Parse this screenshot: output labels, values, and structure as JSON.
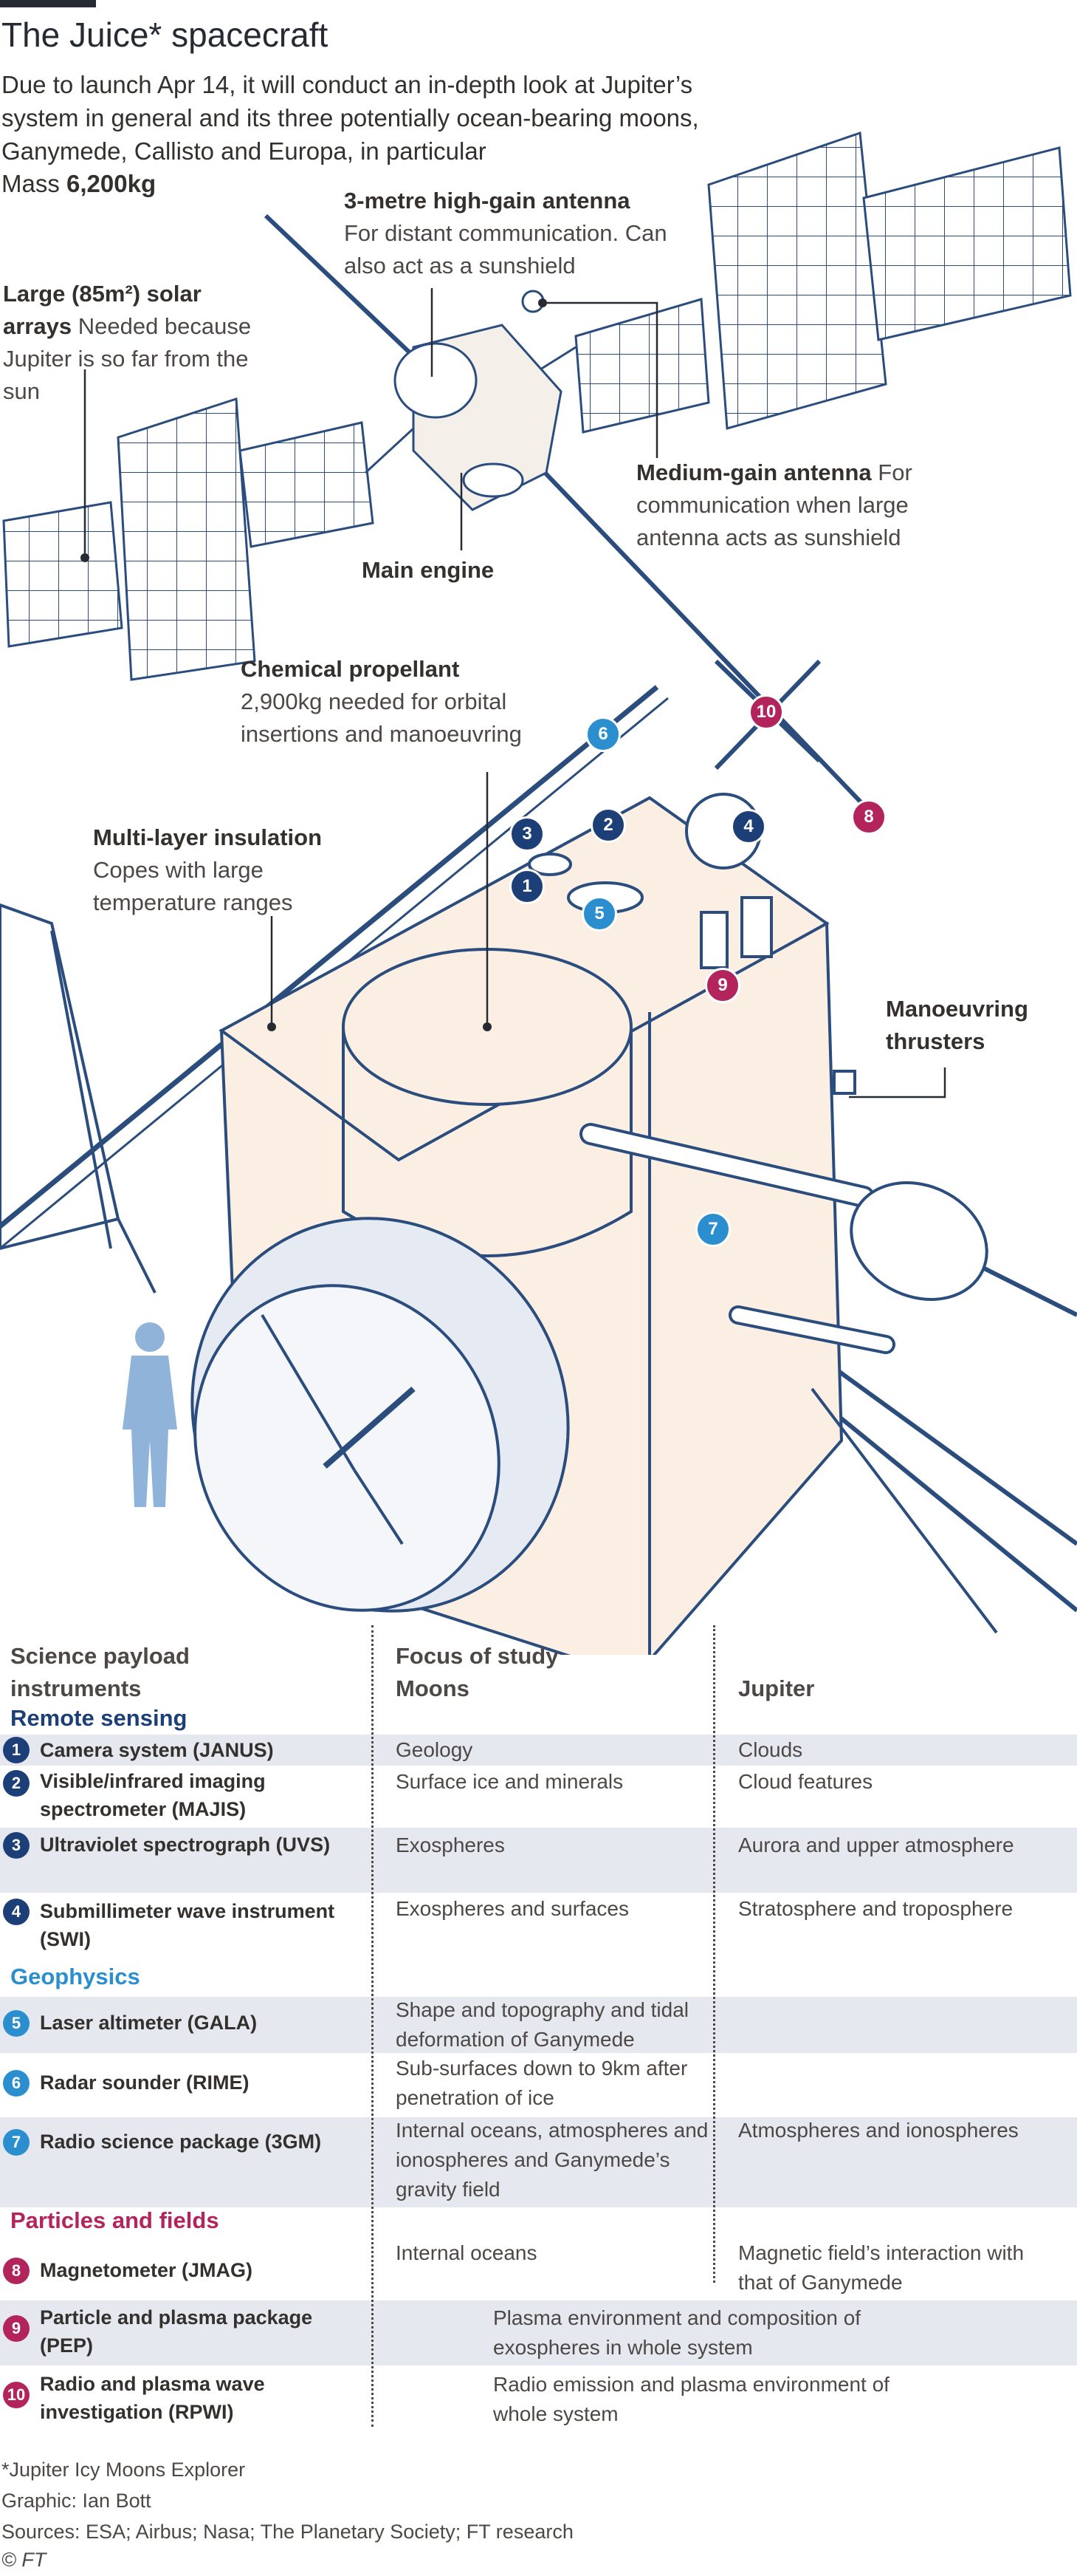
{
  "header": {
    "title": "The Juice* spacecraft",
    "subtitle": "Due to launch Apr 14, it will conduct an in-depth look at Jupiter’s system in general and its three potentially ocean-bearing moons, Ganymede, Callisto and Europa, in particular",
    "mass_label": "Mass",
    "mass_value": "6,200kg"
  },
  "callouts": {
    "hga": {
      "title": "3-metre high-gain antenna",
      "text": "For distant communication. Can also act as a sunshield"
    },
    "solar": {
      "title": "Large (85m²) solar arrays",
      "text": "Needed because Jupiter is so far from the sun"
    },
    "mga": {
      "title": "Medium-gain antenna",
      "text": "For communication when large antenna acts as sunshield"
    },
    "engine": {
      "title": "Main engine"
    },
    "propellant": {
      "title": "Chemical propellant",
      "text": "2,900kg needed for orbital insertions and manoeuvring"
    },
    "insulation": {
      "title": "Multi-layer insulation",
      "text": "Copes with large temperature ranges"
    },
    "thrusters": {
      "title": "Manoeuvring thrusters"
    }
  },
  "badges": [
    "1",
    "2",
    "3",
    "4",
    "5",
    "6",
    "7",
    "8",
    "9",
    "10"
  ],
  "colors": {
    "remote_sensing": "#1d3f78",
    "geophysics": "#2b8fcf",
    "particles_fields": "#b3245c",
    "shade": "#e5e8ef",
    "craft_fill": "#fbeee2",
    "line": "#2a4d7d"
  },
  "table": {
    "header_instruments": "Science payload instruments",
    "header_focus": "Focus of study",
    "header_moons": "Moons",
    "header_jupiter": "Jupiter",
    "sections": {
      "remote_sensing": "Remote sensing",
      "geophysics": "Geophysics",
      "particles_fields": "Particles and fields"
    },
    "rows": [
      {
        "num": "1",
        "name": "Camera system (JANUS)",
        "moons": "Geology",
        "jupiter": "Clouds"
      },
      {
        "num": "2",
        "name": "Visible/infrared imaging spectrometer (MAJIS)",
        "moons": "Surface ice and minerals",
        "jupiter": "Cloud features"
      },
      {
        "num": "3",
        "name": "Ultraviolet spectrograph (UVS)",
        "moons": "Exospheres",
        "jupiter": "Aurora and upper atmosphere"
      },
      {
        "num": "4",
        "name": "Submillimeter wave instrument (SWI)",
        "moons": "Exospheres and surfaces",
        "jupiter": "Stratosphere and troposphere"
      },
      {
        "num": "5",
        "name": "Laser altimeter (GALA)",
        "moons": "Shape and topography and tidal deformation of Ganymede",
        "jupiter": ""
      },
      {
        "num": "6",
        "name": "Radar sounder (RIME)",
        "moons": "Sub-surfaces down to 9km after penetration of ice",
        "jupiter": ""
      },
      {
        "num": "7",
        "name": "Radio science package (3GM)",
        "moons": "Internal oceans, atmospheres and ionospheres and Ganymede’s gravity field",
        "jupiter": "Atmospheres and ionospheres"
      },
      {
        "num": "8",
        "name": "Magnetometer (JMAG)",
        "moons": "Internal oceans",
        "jupiter": "Magnetic field’s interaction with that of Ganymede"
      },
      {
        "num": "9",
        "name": "Particle and plasma package (PEP)",
        "both": "Plasma environment and composition of exospheres in whole system"
      },
      {
        "num": "10",
        "name": "Radio and plasma wave investigation (RPWI)",
        "both": "Radio emission and plasma environment of whole system"
      }
    ]
  },
  "footer": {
    "note": "*Jupiter Icy Moons Explorer",
    "graphic": "Graphic: Ian Bott",
    "sources": "Sources: ESA; Airbus; Nasa; The Planetary Society; FT research",
    "copyright": "© FT"
  }
}
